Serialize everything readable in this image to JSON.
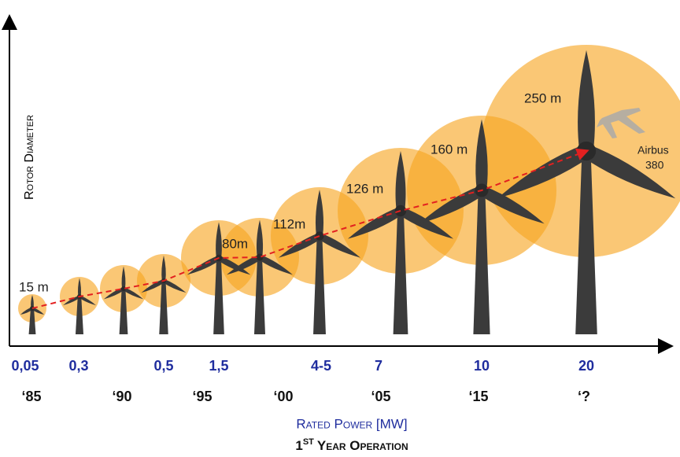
{
  "axes": {
    "y_title": "Rotor Diameter",
    "x_title": "Rated Power [MW]",
    "x_subtitle": {
      "number": "1",
      "superscript": "ST",
      "text": "Year Operation"
    }
  },
  "diameters": [
    "15 m",
    "80m",
    "112m",
    "126 m",
    "160 m",
    "250 m"
  ],
  "power_labels": [
    "0,05",
    "0,3",
    "0,5",
    "1,5",
    "4-5",
    "7",
    "10",
    "20"
  ],
  "year_labels": [
    "‘85",
    "‘90",
    "‘95",
    "‘00",
    "‘05",
    "‘15",
    "‘?"
  ],
  "annotation": [
    "Airbus",
    "380"
  ]
}
